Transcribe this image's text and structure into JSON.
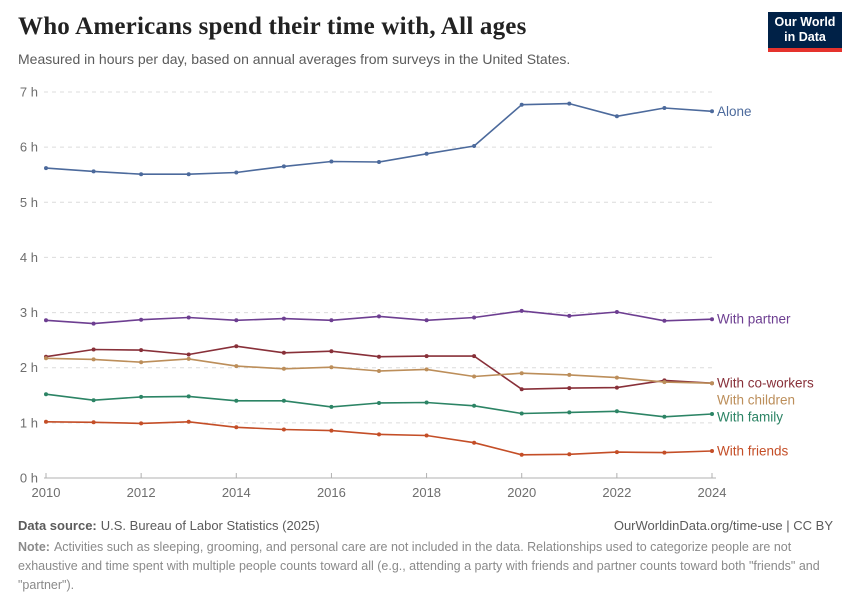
{
  "branding": {
    "logo_line1": "Our World",
    "logo_line2": "in Data",
    "logo_bg": "#002147",
    "logo_accent": "#e5332d"
  },
  "chart_data": {
    "type": "line",
    "title": "Who Americans spend their time with, All ages",
    "subtitle": "Measured in hours per day, based on annual averages from surveys in the United States.",
    "xlabel": "",
    "ylabel": "",
    "ylim": [
      0,
      7
    ],
    "yticks": [
      0,
      1,
      2,
      3,
      4,
      5,
      6,
      7
    ],
    "ytick_suffix": " h",
    "xticks": [
      2010,
      2012,
      2014,
      2016,
      2018,
      2020,
      2022,
      2024
    ],
    "grid": "horizontal dashed",
    "legend_position": "end-of-line labels, right side",
    "x": [
      2010,
      2011,
      2012,
      2013,
      2014,
      2015,
      2016,
      2017,
      2018,
      2019,
      2020,
      2021,
      2022,
      2023,
      2024
    ],
    "series": [
      {
        "name": "Alone",
        "color": "#4c6a9c",
        "values": [
          5.62,
          5.56,
          5.51,
          5.51,
          5.54,
          5.65,
          5.74,
          5.73,
          5.88,
          6.02,
          6.77,
          6.79,
          6.56,
          6.71,
          6.65
        ]
      },
      {
        "name": "With partner",
        "color": "#6d3e91",
        "values": [
          2.86,
          2.8,
          2.87,
          2.91,
          2.86,
          2.89,
          2.86,
          2.93,
          2.86,
          2.91,
          3.03,
          2.94,
          3.01,
          2.85,
          2.88
        ]
      },
      {
        "name": "With co-workers",
        "color": "#883039",
        "values": [
          2.2,
          2.33,
          2.32,
          2.24,
          2.39,
          2.27,
          2.3,
          2.2,
          2.21,
          2.21,
          1.61,
          1.63,
          1.64,
          1.77,
          1.72
        ]
      },
      {
        "name": "With children",
        "color": "#bc8e5a",
        "values": [
          2.17,
          2.15,
          2.1,
          2.16,
          2.03,
          1.98,
          2.01,
          1.94,
          1.97,
          1.84,
          1.9,
          1.87,
          1.82,
          1.74,
          1.72
        ]
      },
      {
        "name": "With family",
        "color": "#2c8465",
        "values": [
          1.52,
          1.41,
          1.47,
          1.48,
          1.4,
          1.4,
          1.29,
          1.36,
          1.37,
          1.31,
          1.17,
          1.19,
          1.21,
          1.11,
          1.16
        ]
      },
      {
        "name": "With friends",
        "color": "#c44e27",
        "values": [
          1.02,
          1.01,
          0.99,
          1.02,
          0.92,
          0.88,
          0.86,
          0.79,
          0.77,
          0.64,
          0.42,
          0.43,
          0.47,
          0.46,
          0.49
        ]
      }
    ]
  },
  "footer": {
    "datasource_label": "Data source:",
    "datasource": "U.S. Bureau of Labor Statistics (2025)",
    "attribution": "OurWorldinData.org/time-use | CC BY",
    "note_label": "Note:",
    "note": "Activities such as sleeping, grooming, and personal care are not included in the data. Relationships used to categorize people are not exhaustive and time spent with multiple people counts toward all (e.g., attending a party with friends and partner counts toward both \"friends\" and \"partner\")."
  }
}
